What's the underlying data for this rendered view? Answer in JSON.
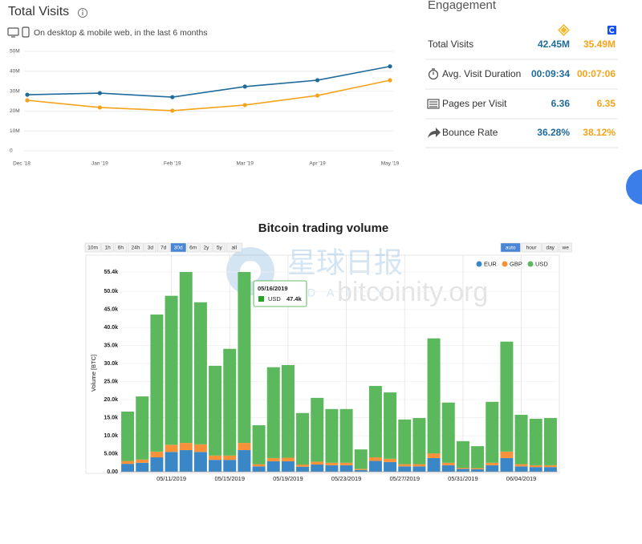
{
  "chart_data": [
    {
      "type": "line",
      "title": "Total Visits",
      "subtitle": "On desktop & mobile web, in the last 6 months",
      "categories": [
        "Dec '18",
        "Jan '19",
        "Feb '19",
        "Mar '19",
        "Apr '19",
        "May '19"
      ],
      "series": [
        {
          "color": "#1f6b9b",
          "values": [
            28.2,
            29,
            27,
            32.3,
            35.5,
            42.45
          ]
        },
        {
          "color": "#f5a31a",
          "values": [
            25.4,
            21.8,
            20.2,
            23,
            27.8,
            35.49
          ]
        }
      ],
      "ylim": [
        0,
        50
      ],
      "yticks": [
        0,
        {
          "value": 10,
          "label": "10M"
        },
        {
          "value": 20,
          "label": "20M"
        },
        {
          "value": 30,
          "label": "30M"
        },
        {
          "value": 40,
          "label": "40M"
        },
        {
          "value": 50,
          "label": "50M"
        }
      ],
      "grid": true
    },
    {
      "type": "bar",
      "stacked": true,
      "title": "Bitcoin trading volume",
      "ylabel": "Volume [BTC]",
      "categories": [
        null,
        null,
        null,
        "05/11/2019",
        null,
        null,
        null,
        "05/15/2019",
        null,
        null,
        null,
        "05/19/2019",
        null,
        null,
        null,
        "05/23/2019",
        null,
        null,
        null,
        "05/27/2019",
        null,
        null,
        null,
        "05/31/2019",
        null,
        null,
        null,
        "06/04/2019",
        null,
        null
      ],
      "series": [
        {
          "name": "EUR",
          "color": "#3a87c8",
          "values": [
            2.2,
            2.5,
            4.0,
            5.5,
            6.0,
            5.5,
            3.3,
            3.3,
            6.0,
            1.5,
            2.9,
            2.9,
            1.4,
            2.0,
            1.8,
            1.8,
            0.5,
            3.0,
            2.7,
            1.5,
            1.5,
            3.8,
            1.8,
            0.8,
            0.7,
            1.8,
            3.8,
            1.5,
            1.3,
            1.3
          ]
        },
        {
          "name": "GBP",
          "color": "#f7923a",
          "values": [
            0.8,
            0.9,
            1.6,
            2.0,
            2.0,
            2.1,
            1.2,
            1.2,
            2.0,
            0.6,
            0.9,
            1.0,
            0.6,
            0.8,
            0.7,
            0.7,
            0.3,
            1.0,
            0.9,
            0.6,
            0.6,
            1.3,
            0.7,
            0.3,
            0.3,
            0.7,
            1.8,
            0.6,
            0.5,
            0.5
          ]
        },
        {
          "name": "USD",
          "color": "#5cb85c",
          "values": [
            13.7,
            17.5,
            38.0,
            41.3,
            47.4,
            39.4,
            24.9,
            29.6,
            47.4,
            10.8,
            25.2,
            25.7,
            14.3,
            17.7,
            14.9,
            14.9,
            5.4,
            19.8,
            18.4,
            12.4,
            12.8,
            31.9,
            16.7,
            7.4,
            6.1,
            16.9,
            30.5,
            13.7,
            12.9,
            13.1
          ]
        }
      ],
      "ylim": [
        0,
        55.4
      ],
      "yticks": [
        {
          "value": 0,
          "label": "0.00"
        },
        {
          "value": 5,
          "label": "5.00k"
        },
        {
          "value": 10,
          "label": "10.0k"
        },
        {
          "value": 15,
          "label": "15.0k"
        },
        {
          "value": 20,
          "label": "20.0k"
        },
        {
          "value": 25,
          "label": "25.0k"
        },
        {
          "value": 30,
          "label": "30.0k"
        },
        {
          "value": 35,
          "label": "35.0k"
        },
        {
          "value": 40,
          "label": "40.0k"
        },
        {
          "value": 45,
          "label": "45.0k"
        },
        {
          "value": 50,
          "label": "50.0k"
        },
        {
          "value": 55.4,
          "label": "55.4k"
        }
      ],
      "grid": true,
      "legend": "top-right",
      "tooltip": {
        "date": "05/16/2019",
        "series": "USD",
        "value_label": "47.4k"
      },
      "range_buttons": [
        "10m",
        "1h",
        "6h",
        "24h",
        "3d",
        "7d",
        "30d",
        "6m",
        "2y",
        "5y",
        "all"
      ],
      "active_range": "30d",
      "resolution_buttons": [
        "auto",
        "hour",
        "day",
        "we"
      ],
      "active_resolution": "auto",
      "watermark": [
        "星球日报",
        "ODAILY",
        "bitcoinity.org"
      ]
    }
  ],
  "engagement": {
    "title": "Engagement",
    "rows": [
      {
        "label": "Total Visits",
        "values": [
          "42.45M",
          "35.49M"
        ]
      },
      {
        "label": "Avg. Visit Duration",
        "values": [
          "00:09:34",
          "00:07:06"
        ]
      },
      {
        "label": "Pages per Visit",
        "values": [
          "6.36",
          "6.35"
        ]
      },
      {
        "label": "Bounce Rate",
        "values": [
          "36.28%",
          "38.12%"
        ]
      }
    ]
  }
}
